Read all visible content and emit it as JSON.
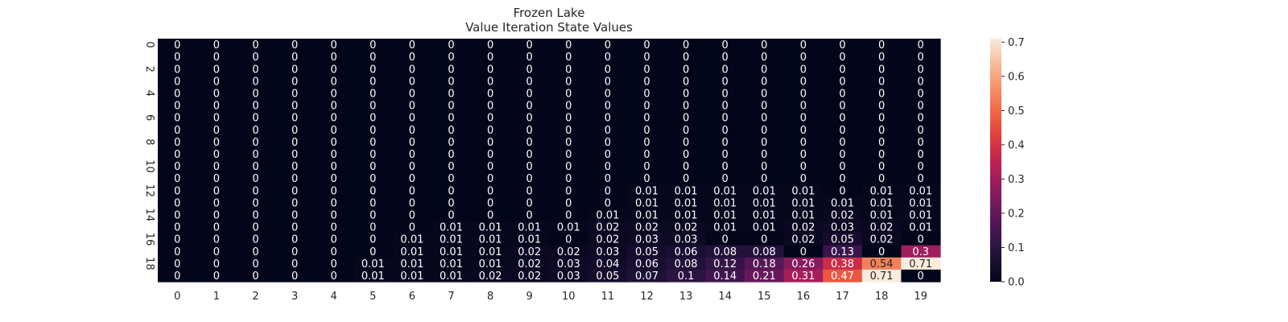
{
  "chart_data": {
    "type": "heatmap",
    "title": "Frozen Lake",
    "subtitle": "Value Iteration State Values",
    "xlabel": "",
    "ylabel": "",
    "x_ticks": [
      "0",
      "1",
      "2",
      "3",
      "4",
      "5",
      "6",
      "7",
      "8",
      "9",
      "10",
      "11",
      "12",
      "13",
      "14",
      "15",
      "16",
      "17",
      "18",
      "19"
    ],
    "y_ticks": [
      "0",
      "2",
      "4",
      "6",
      "8",
      "10",
      "12",
      "14",
      "16",
      "18"
    ],
    "vmin": 0.0,
    "vmax": 0.71,
    "colorbar_ticks": [
      "0.0",
      "0.1",
      "0.2",
      "0.3",
      "0.4",
      "0.5",
      "0.6",
      "0.7"
    ],
    "colorbar_tick_values": [
      0.0,
      0.1,
      0.2,
      0.3,
      0.4,
      0.5,
      0.6,
      0.7
    ],
    "colormap": "rocket",
    "values": [
      [
        0,
        0,
        0,
        0,
        0,
        0,
        0,
        0,
        0,
        0,
        0,
        0,
        0,
        0,
        0,
        0,
        0,
        0,
        0,
        0
      ],
      [
        0,
        0,
        0,
        0,
        0,
        0,
        0,
        0,
        0,
        0,
        0,
        0,
        0,
        0,
        0,
        0,
        0,
        0,
        0,
        0
      ],
      [
        0,
        0,
        0,
        0,
        0,
        0,
        0,
        0,
        0,
        0,
        0,
        0,
        0,
        0,
        0,
        0,
        0,
        0,
        0,
        0
      ],
      [
        0,
        0,
        0,
        0,
        0,
        0,
        0,
        0,
        0,
        0,
        0,
        0,
        0,
        0,
        0,
        0,
        0,
        0,
        0,
        0
      ],
      [
        0,
        0,
        0,
        0,
        0,
        0,
        0,
        0,
        0,
        0,
        0,
        0,
        0,
        0,
        0,
        0,
        0,
        0,
        0,
        0
      ],
      [
        0,
        0,
        0,
        0,
        0,
        0,
        0,
        0,
        0,
        0,
        0,
        0,
        0,
        0,
        0,
        0,
        0,
        0,
        0,
        0
      ],
      [
        0,
        0,
        0,
        0,
        0,
        0,
        0,
        0,
        0,
        0,
        0,
        0,
        0,
        0,
        0,
        0,
        0,
        0,
        0,
        0
      ],
      [
        0,
        0,
        0,
        0,
        0,
        0,
        0,
        0,
        0,
        0,
        0,
        0,
        0,
        0,
        0,
        0,
        0,
        0,
        0,
        0
      ],
      [
        0,
        0,
        0,
        0,
        0,
        0,
        0,
        0,
        0,
        0,
        0,
        0,
        0,
        0,
        0,
        0,
        0,
        0,
        0,
        0
      ],
      [
        0,
        0,
        0,
        0,
        0,
        0,
        0,
        0,
        0,
        0,
        0,
        0,
        0,
        0,
        0,
        0,
        0,
        0,
        0,
        0
      ],
      [
        0,
        0,
        0,
        0,
        0,
        0,
        0,
        0,
        0,
        0,
        0,
        0,
        0,
        0,
        0,
        0,
        0,
        0,
        0,
        0
      ],
      [
        0,
        0,
        0,
        0,
        0,
        0,
        0,
        0,
        0,
        0,
        0,
        0,
        0,
        0,
        0,
        0,
        0,
        0,
        0,
        0
      ],
      [
        0,
        0,
        0,
        0,
        0,
        0,
        0,
        0,
        0,
        0,
        0,
        0,
        0.01,
        0.01,
        0.01,
        0.01,
        0.01,
        0,
        0.01,
        0.01
      ],
      [
        0,
        0,
        0,
        0,
        0,
        0,
        0,
        0,
        0,
        0,
        0,
        0,
        0.01,
        0.01,
        0.01,
        0.01,
        0.01,
        0.01,
        0.01,
        0.01
      ],
      [
        0,
        0,
        0,
        0,
        0,
        0,
        0,
        0,
        0,
        0,
        0,
        0.01,
        0.01,
        0.01,
        0.01,
        0.01,
        0.01,
        0.02,
        0.01,
        0.01
      ],
      [
        0,
        0,
        0,
        0,
        0,
        0,
        0,
        0.01,
        0.01,
        0.01,
        0.01,
        0.02,
        0.02,
        0.02,
        0.01,
        0.01,
        0.02,
        0.03,
        0.02,
        0.01
      ],
      [
        0,
        0,
        0,
        0,
        0,
        0,
        0.01,
        0.01,
        0.01,
        0.01,
        0,
        0.02,
        0.03,
        0.03,
        0,
        0,
        0.02,
        0.05,
        0.02,
        0
      ],
      [
        0,
        0,
        0,
        0,
        0,
        0,
        0.01,
        0.01,
        0.01,
        0.02,
        0.02,
        0.03,
        0.05,
        0.06,
        0.08,
        0.08,
        0,
        0.13,
        0,
        0.3
      ],
      [
        0,
        0,
        0,
        0,
        0,
        0.01,
        0.01,
        0.01,
        0.01,
        0.02,
        0.03,
        0.04,
        0.06,
        0.08,
        0.12,
        0.18,
        0.26,
        0.38,
        0.54,
        0.71
      ],
      [
        0,
        0,
        0,
        0,
        0,
        0.01,
        0.01,
        0.01,
        0.02,
        0.02,
        0.03,
        0.05,
        0.07,
        0.1,
        0.14,
        0.21,
        0.31,
        0.47,
        0.71,
        0
      ]
    ],
    "grid": false,
    "legend": "colorbar-right"
  }
}
